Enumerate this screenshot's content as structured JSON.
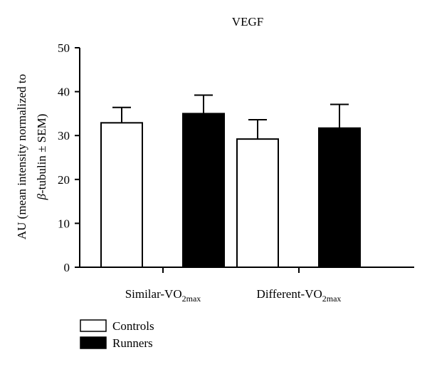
{
  "chart_data": {
    "type": "bar",
    "title": "VEGF",
    "ylabel_lines": [
      "AU (mean intensity normalized to",
      "β-tubulin ± SEM)"
    ],
    "ylim": [
      0,
      50
    ],
    "yticks": [
      0,
      10,
      20,
      30,
      40,
      50
    ],
    "categories": [
      {
        "base": "Similar-VO",
        "sub": "2max"
      },
      {
        "base": "Different-VO",
        "sub": "2max"
      }
    ],
    "series": [
      {
        "name": "Controls",
        "values": [
          32.9,
          29.2
        ],
        "errors": [
          3.5,
          4.4
        ],
        "color": "#ffffff"
      },
      {
        "name": "Runners",
        "values": [
          35.0,
          31.7
        ],
        "errors": [
          4.2,
          5.4
        ],
        "color": "#000000"
      }
    ],
    "grid": false,
    "legend": "bottom-left"
  }
}
